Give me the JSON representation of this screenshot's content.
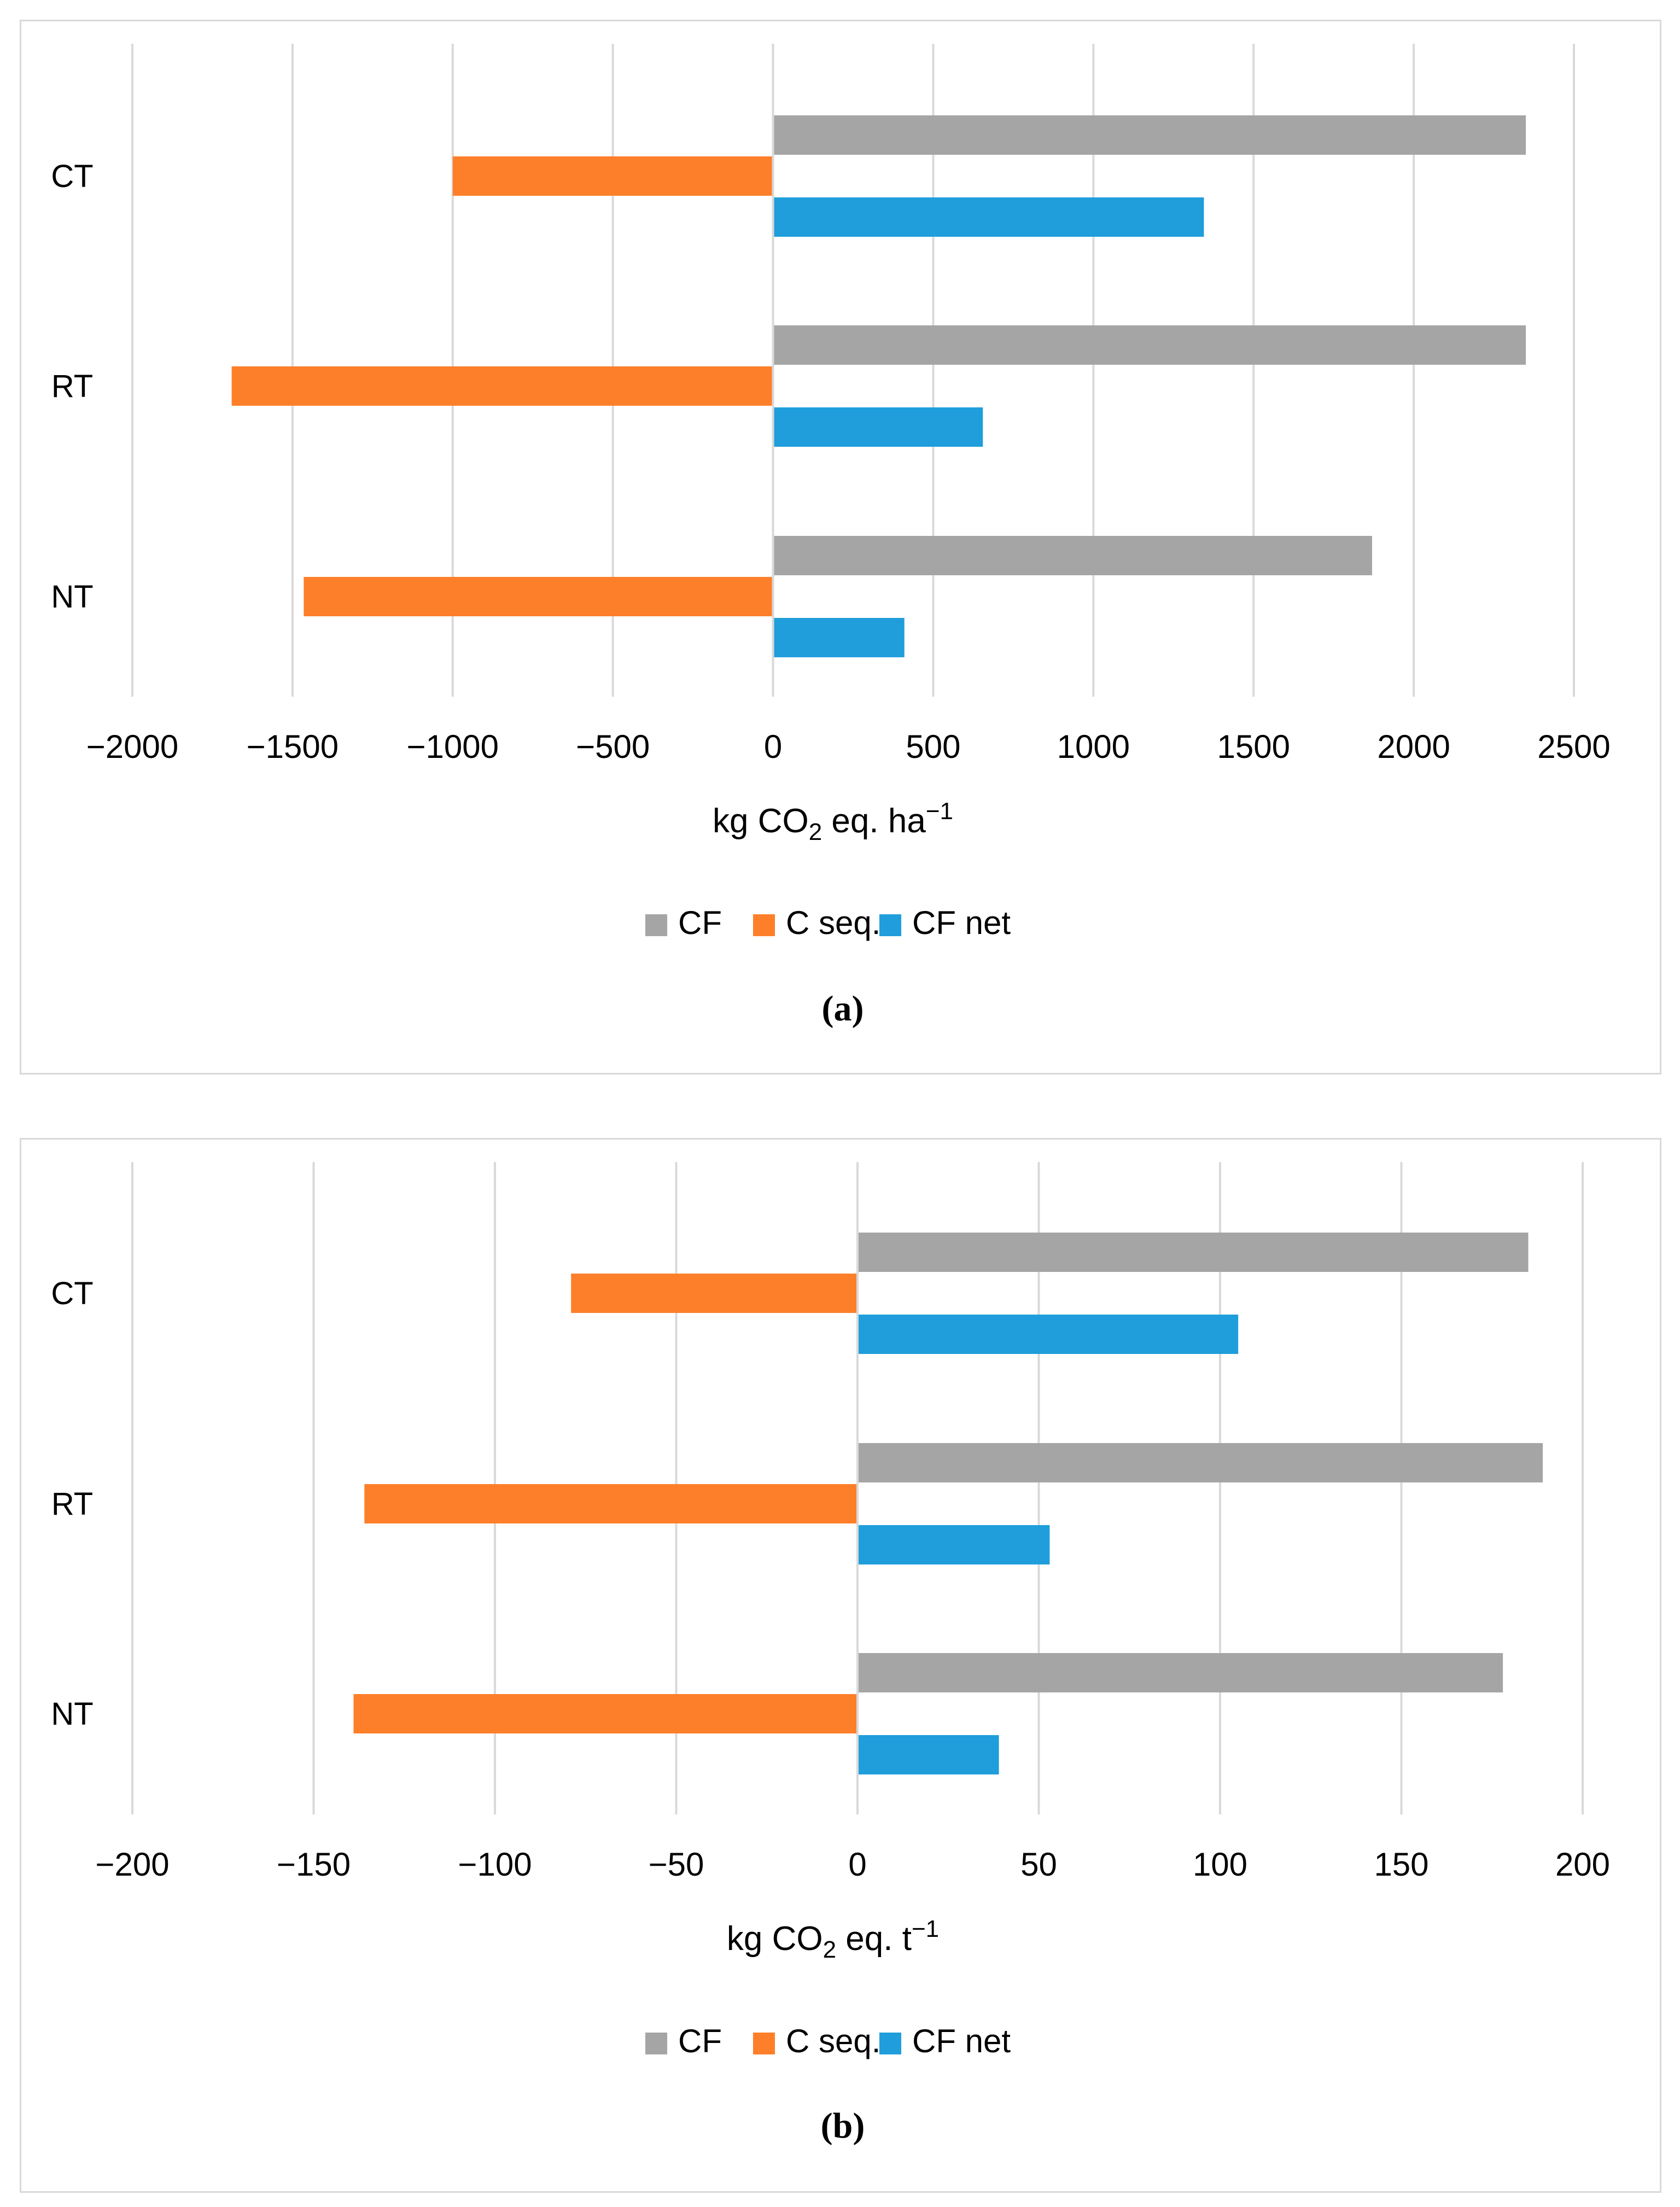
{
  "colors": {
    "CF": "#a5a5a5",
    "C seq.": "#fe7f2a",
    "CF net": "#1f9edb",
    "grid": "#d9d9d9"
  },
  "chart_data": [
    {
      "type": "bar",
      "orientation": "horizontal",
      "panel_label": "(a)",
      "categories": [
        "CT",
        "RT",
        "NT"
      ],
      "series": [
        {
          "name": "CF",
          "values": [
            2350,
            2350,
            1870
          ]
        },
        {
          "name": "C seq.",
          "values": [
            -1000,
            -1690,
            -1465
          ]
        },
        {
          "name": "CF net",
          "values": [
            1345,
            655,
            410
          ]
        }
      ],
      "xlim": [
        -2000,
        2500
      ],
      "xticks": [
        -2000,
        -1500,
        -1000,
        -500,
        0,
        500,
        1000,
        1500,
        2000,
        2500
      ],
      "xtick_labels": [
        "−2000",
        "−1500",
        "−1000",
        "−500",
        "0",
        "500",
        "1000",
        "1500",
        "2000",
        "2500"
      ],
      "xlabel_main": "kg CO",
      "xlabel_sub": "2",
      "xlabel_rest": " eq. ha",
      "xlabel_sup": "−1",
      "legend": [
        "CF",
        "C seq.",
        "CF net"
      ],
      "legend_position": "bottom",
      "grid": true
    },
    {
      "type": "bar",
      "orientation": "horizontal",
      "panel_label": "(b)",
      "categories": [
        "CT",
        "RT",
        "NT"
      ],
      "series": [
        {
          "name": "CF",
          "values": [
            185,
            189,
            178
          ]
        },
        {
          "name": "C seq.",
          "values": [
            -79,
            -136,
            -139
          ]
        },
        {
          "name": "CF net",
          "values": [
            105,
            53,
            39
          ]
        }
      ],
      "xlim": [
        -200,
        200
      ],
      "xticks": [
        -200,
        -150,
        -100,
        -50,
        0,
        50,
        100,
        150,
        200
      ],
      "xtick_labels": [
        "−200",
        "−150",
        "−100",
        "−50",
        "0",
        "50",
        "100",
        "150",
        "200"
      ],
      "xlabel_main": "kg CO",
      "xlabel_sub": "2",
      "xlabel_rest": " eq. t",
      "xlabel_sup": "−1",
      "legend": [
        "CF",
        "C seq.",
        "CF net"
      ],
      "legend_position": "bottom",
      "grid": true
    }
  ]
}
